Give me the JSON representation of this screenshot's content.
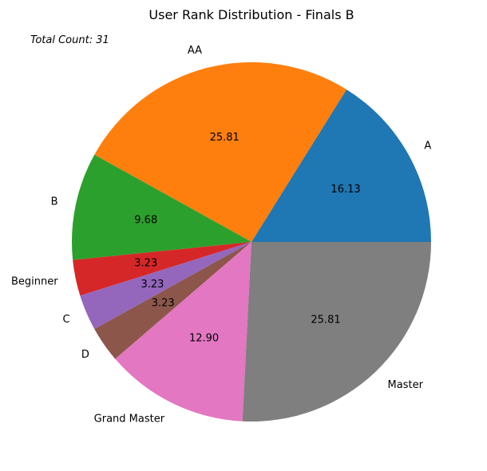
{
  "chart_data": {
    "type": "pie",
    "title": "User Rank Distribution - Finals B",
    "annotation": "Total Count: 31",
    "total": 31,
    "slices": [
      {
        "label": "A",
        "value": 16.13,
        "pct_label": "16.13",
        "color": "#1f77b4"
      },
      {
        "label": "AA",
        "value": 25.81,
        "pct_label": "25.81",
        "color": "#ff7f0e"
      },
      {
        "label": "B",
        "value": 9.68,
        "pct_label": "9.68",
        "color": "#2ca02c"
      },
      {
        "label": "Beginner",
        "value": 3.23,
        "pct_label": "3.23",
        "color": "#d62728"
      },
      {
        "label": "C",
        "value": 3.23,
        "pct_label": "3.23",
        "color": "#9467bd"
      },
      {
        "label": "D",
        "value": 3.23,
        "pct_label": "3.23",
        "color": "#8c564b"
      },
      {
        "label": "Grand Master",
        "value": 12.9,
        "pct_label": "12.90",
        "color": "#e377c2"
      },
      {
        "label": "Master",
        "value": 25.81,
        "pct_label": "25.81",
        "color": "#7f7f7f"
      }
    ],
    "start_angle_deg": 0,
    "direction": "counterclockwise",
    "legend": "none"
  }
}
